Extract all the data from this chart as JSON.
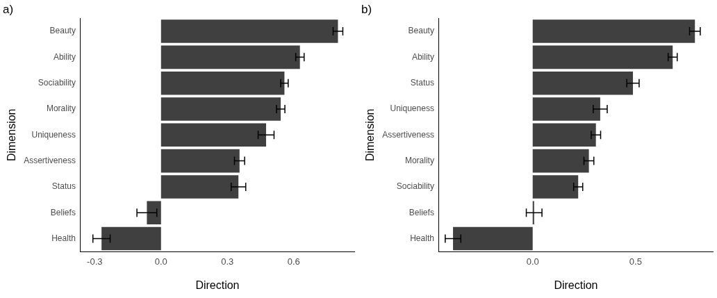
{
  "chart_data": [
    {
      "type": "bar",
      "title": "a)",
      "orientation": "horizontal",
      "xlabel": "Direction",
      "ylabel": "Dimension",
      "categories": [
        "Beauty",
        "Ability",
        "Sociability",
        "Morality",
        "Uniqueness",
        "Assertiveness",
        "Status",
        "Beliefs",
        "Health"
      ],
      "values": [
        0.8,
        0.628,
        0.558,
        0.541,
        0.475,
        0.355,
        0.35,
        -0.064,
        -0.269
      ],
      "errors": [
        0.022,
        0.019,
        0.017,
        0.019,
        0.036,
        0.023,
        0.033,
        0.045,
        0.039
      ],
      "color": "#404040",
      "xlim": [
        -0.364,
        0.874
      ],
      "xticks": [
        {
          "value": -0.3,
          "label": "-0.3"
        },
        {
          "value": 0,
          "label": "0.0"
        },
        {
          "value": 0.3,
          "label": "0.3"
        },
        {
          "value": 0.6,
          "label": "0.6"
        }
      ],
      "grid": false,
      "legend": false
    },
    {
      "type": "bar",
      "title": "b)",
      "orientation": "horizontal",
      "xlabel": "Direction",
      "ylabel": "Dimension",
      "categories": [
        "Beauty",
        "Ability",
        "Status",
        "Uniqueness",
        "Assertiveness",
        "Morality",
        "Sociability",
        "Beliefs",
        "Health"
      ],
      "values": [
        0.788,
        0.68,
        0.487,
        0.328,
        0.307,
        0.273,
        0.221,
        0.007,
        -0.387
      ],
      "errors": [
        0.026,
        0.022,
        0.03,
        0.034,
        0.023,
        0.024,
        0.022,
        0.038,
        0.038
      ],
      "color": "#404040",
      "xlim": [
        -0.455,
        0.875
      ],
      "xticks": [
        {
          "value": 0,
          "label": "0.0"
        },
        {
          "value": 0.5,
          "label": "0.5"
        }
      ],
      "grid": false,
      "legend": false
    }
  ]
}
